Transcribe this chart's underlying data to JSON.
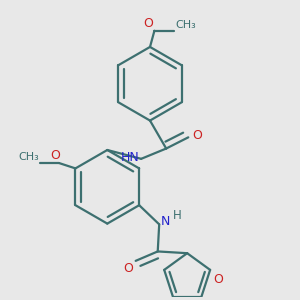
{
  "bg_color": "#e8e8e8",
  "bond_color": "#3d7070",
  "atom_colors": {
    "N": "#2222cc",
    "O": "#cc2222",
    "C": "#3d7070"
  },
  "bond_width": 1.6,
  "xlim": [
    0,
    1
  ],
  "ylim": [
    0,
    1
  ]
}
